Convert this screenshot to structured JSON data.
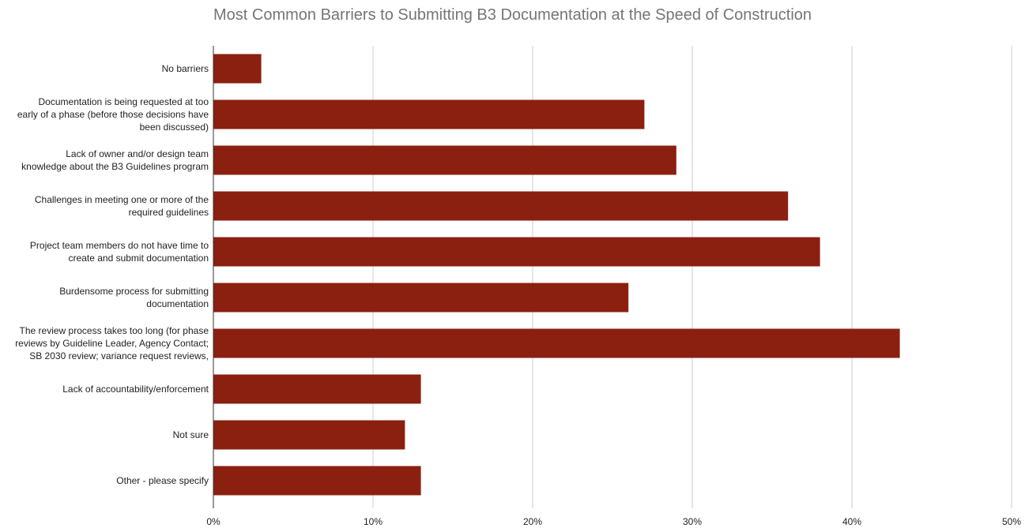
{
  "chart_data": {
    "type": "bar",
    "orientation": "horizontal",
    "title": "Most Common Barriers to Submitting B3 Documentation at the Speed of Construction",
    "xlabel": "",
    "ylabel": "",
    "categories": [
      [
        "No barriers"
      ],
      [
        "Documentation is being requested at too",
        "early of a phase (before those decisions have",
        "been discussed)"
      ],
      [
        "Lack of owner and/or design team",
        "knowledge about the B3 Guidelines program"
      ],
      [
        "Challenges in meeting one or more of the",
        "required guidelines"
      ],
      [
        "Project team members do not have time to",
        "create and submit documentation"
      ],
      [
        "Burdensome process for submitting",
        "documentation"
      ],
      [
        "The review process takes too long (for phase",
        "reviews by Guideline Leader, Agency Contact;",
        "SB 2030 review; variance request reviews,"
      ],
      [
        "Lack of accountability/enforcement"
      ],
      [
        "Not sure"
      ],
      [
        "Other - please specify"
      ]
    ],
    "values": [
      3,
      27,
      29,
      36,
      38,
      26,
      43,
      13,
      12,
      13
    ],
    "xlim": [
      0,
      50
    ],
    "x_ticks": [
      0,
      10,
      20,
      30,
      40,
      50
    ],
    "x_tick_labels": [
      "0%",
      "10%",
      "20%",
      "30%",
      "40%",
      "50%"
    ],
    "grid": true,
    "legend": "none",
    "bar_color": "#8b2010",
    "grid_color": "#cccccc",
    "axis_color": "#333333"
  }
}
